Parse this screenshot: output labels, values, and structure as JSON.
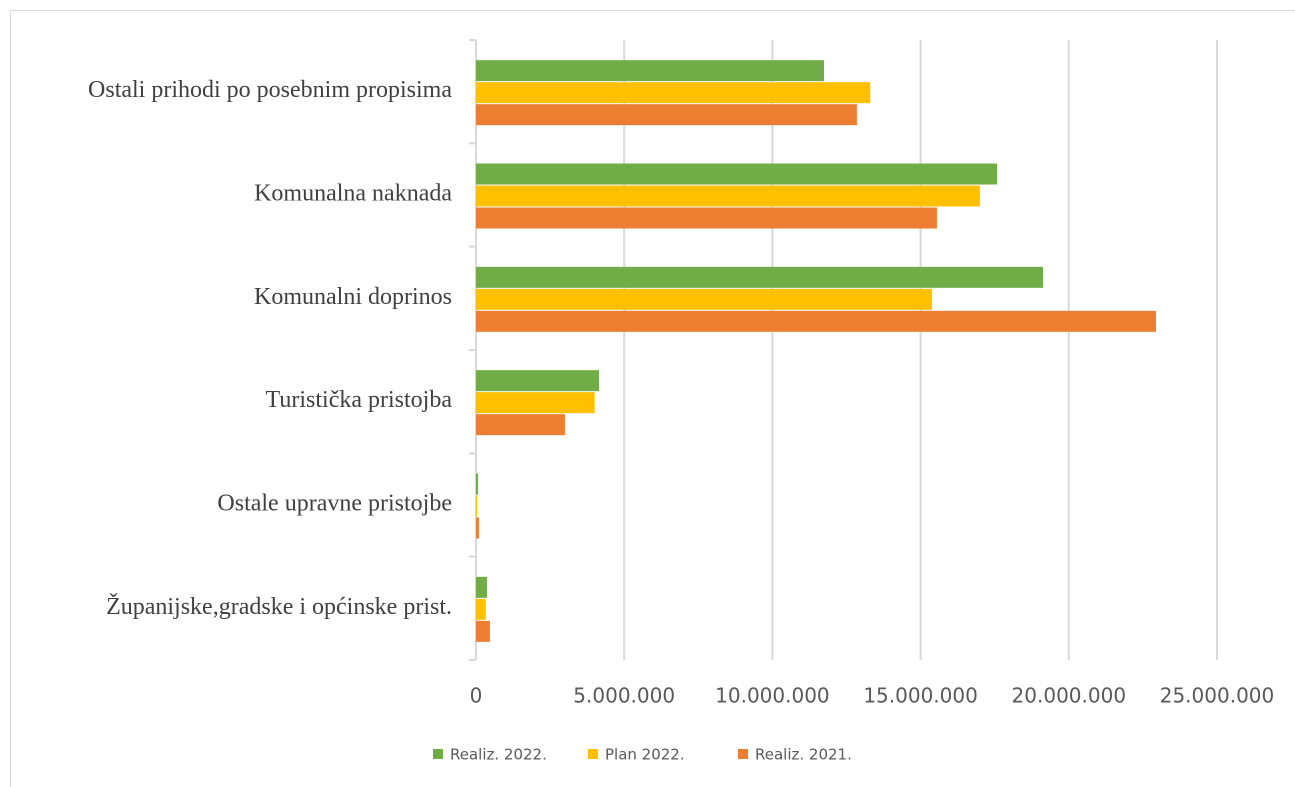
{
  "chart_data": {
    "type": "hbar",
    "categories": [
      "Ostali prihodi po posebnim propisima",
      "Komunalna naknada",
      "Komunalni doprinos",
      "Turistička pristojba",
      "Ostale upravne pristojbe",
      "Županijske,gradske i općinske prist."
    ],
    "series": [
      {
        "name": "Realiz. 2022.",
        "color": "#70ad47",
        "values": [
          11740000,
          17580000,
          19130000,
          4150000,
          70000,
          370000
        ]
      },
      {
        "name": "Plan 2022.",
        "color": "#ffc000",
        "values": [
          13300000,
          17000000,
          15380000,
          4000000,
          40000,
          330000
        ]
      },
      {
        "name": "Realiz. 2021.",
        "color": "#ed7d31",
        "values": [
          12850000,
          15550000,
          22940000,
          3000000,
          100000,
          470000
        ]
      }
    ],
    "xlim": [
      0,
      25000000
    ],
    "xticks": [
      0,
      {
        "value": 5000000,
        "label": "5.000.000"
      },
      {
        "value": 10000000,
        "label": "10.000.000"
      },
      {
        "value": 15000000,
        "label": "15.000.000"
      },
      {
        "value": 20000000,
        "label": "20.000.000"
      },
      {
        "value": 25000000,
        "label": "25.000.000"
      }
    ],
    "grid": true,
    "legend": "bottom"
  }
}
